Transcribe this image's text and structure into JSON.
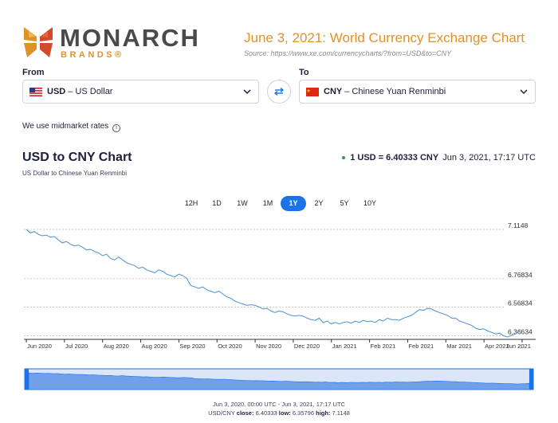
{
  "brand": {
    "name": "MONARCH",
    "sub": "BRANDS®"
  },
  "header": {
    "title": "June 3, 2021: World Currency Exchange Chart",
    "source": "Source: https://www.xe.com/currencycharts/?from=USD&to=CNY"
  },
  "converter": {
    "from_label": "From",
    "to_label": "To",
    "from": {
      "code": "USD",
      "name": "– US Dollar"
    },
    "to": {
      "code": "CNY",
      "name": "– Chinese Yuan Renminbi"
    }
  },
  "midmarket_note": "We use midmarket rates",
  "info_glyph": "i",
  "chart_header": {
    "title": "USD to CNY Chart",
    "subtitle": "US Dollar to Chinese Yuan Renminbi",
    "rate": "1 USD = 6.40333 CNY",
    "timestamp": "Jun 3, 2021, 17:17 UTC"
  },
  "ranges": [
    {
      "label": "12H",
      "active": false
    },
    {
      "label": "1D",
      "active": false
    },
    {
      "label": "1W",
      "active": false
    },
    {
      "label": "1M",
      "active": false
    },
    {
      "label": "1Y",
      "active": true
    },
    {
      "label": "2Y",
      "active": false
    },
    {
      "label": "5Y",
      "active": false
    },
    {
      "label": "10Y",
      "active": false
    }
  ],
  "chart_data": {
    "type": "line",
    "title": "USD to CNY Chart",
    "y_ticks": [
      "7.1148",
      "6.76834",
      "6.56834",
      "6.36634"
    ],
    "y_tick_values": [
      7.1148,
      6.76834,
      6.56834,
      6.36634
    ],
    "x_ticks": [
      "Jun 2020",
      "Jul 2020",
      "Aug 2020",
      "Aug 2020",
      "Sep 2020",
      "Oct 2020",
      "Nov 2020",
      "Dec 2020",
      "Jan 2021",
      "Feb 2021",
      "Feb 2021",
      "Mar 2021",
      "Apr 2021",
      "Jun 2021"
    ],
    "ylim": [
      6.35796,
      7.1148
    ],
    "grid": true,
    "series": [
      {
        "values": [
          7.1148,
          7.09,
          7.1,
          7.08,
          7.07,
          7.075,
          7.06,
          7.065,
          7.04,
          7.02,
          7.03,
          7.01,
          7.0,
          7.005,
          6.99,
          6.97,
          6.975,
          6.96,
          6.95,
          6.93,
          6.94,
          6.91,
          6.9,
          6.92,
          6.9,
          6.88,
          6.87,
          6.86,
          6.84,
          6.85,
          6.83,
          6.82,
          6.81,
          6.83,
          6.82,
          6.8,
          6.79,
          6.78,
          6.8,
          6.79,
          6.77,
          6.72,
          6.71,
          6.7,
          6.71,
          6.69,
          6.68,
          6.67,
          6.68,
          6.66,
          6.64,
          6.63,
          6.61,
          6.6,
          6.59,
          6.58,
          6.585,
          6.58,
          6.57,
          6.555,
          6.56,
          6.54,
          6.53,
          6.54,
          6.535,
          6.52,
          6.51,
          6.505,
          6.51,
          6.505,
          6.49,
          6.48,
          6.475,
          6.49,
          6.46,
          6.47,
          6.45,
          6.46,
          6.45,
          6.46,
          6.465,
          6.455,
          6.47,
          6.46,
          6.475,
          6.465,
          6.47,
          6.46,
          6.48,
          6.47,
          6.49,
          6.48,
          6.48,
          6.475,
          6.49,
          6.5,
          6.51,
          6.53,
          6.55,
          6.545,
          6.56,
          6.555,
          6.54,
          6.53,
          6.52,
          6.51,
          6.49,
          6.49,
          6.47,
          6.46,
          6.45,
          6.44,
          6.42,
          6.41,
          6.415,
          6.4,
          6.39,
          6.38,
          6.385,
          6.36634,
          6.35796,
          6.37,
          6.38,
          6.40333
        ]
      }
    ]
  },
  "footer": {
    "range_text": "Jun 3, 2020, 00:00 UTC - Jun 3, 2021, 17:17 UTC",
    "pair": "USD/CNY",
    "close_label": "close:",
    "close": "6.40333",
    "low_label": "low:",
    "low": "6.35796",
    "high_label": "high:",
    "high": "7.1148"
  },
  "colors": {
    "accent": "#1a73e8",
    "brand_orange": "#e0922a",
    "line": "#4a90d9",
    "navigator_fill": "#6fa0e8",
    "live_dot": "#2e9e4f"
  },
  "icons": {
    "swap": "swap-arrows-icon",
    "chevron": "chevron-down-icon",
    "info": "info-icon",
    "flag_from": "us-flag-icon",
    "flag_to": "china-flag-icon"
  }
}
